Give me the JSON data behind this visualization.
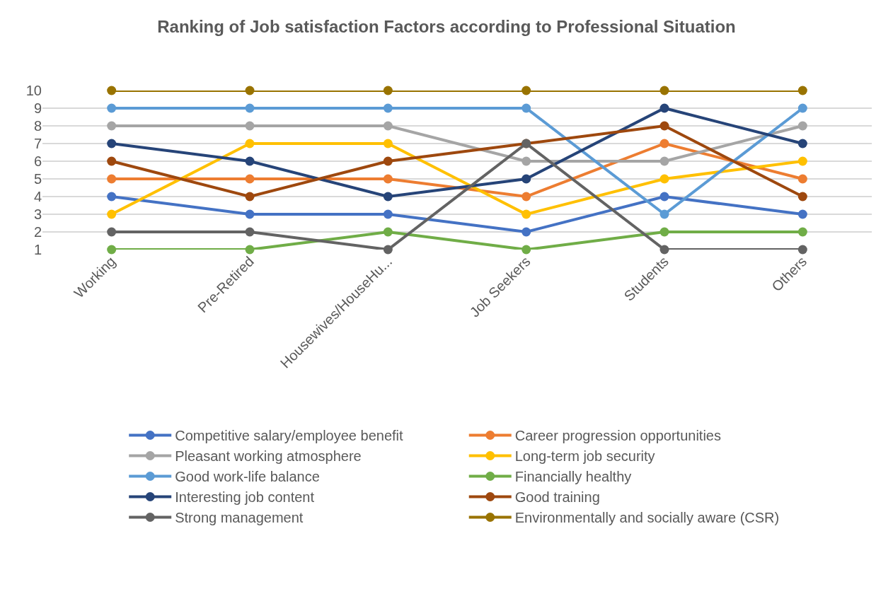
{
  "chart_data": {
    "type": "line",
    "title": "Ranking of Job satisfaction Factors according to Professional Situation",
    "categories": [
      "Working",
      "Pre-Retired",
      "Housewives/HouseHu...",
      "Job Seekers",
      "Students",
      "Others"
    ],
    "series": [
      {
        "name": "Competitive salary/employee benefit",
        "color": "#4472c4",
        "values": [
          4,
          3,
          3,
          2,
          4,
          3
        ]
      },
      {
        "name": "Career progression opportunities",
        "color": "#ed7d31",
        "values": [
          5,
          5,
          5,
          4,
          7,
          5
        ]
      },
      {
        "name": "Pleasant working atmosphere",
        "color": "#a5a5a5",
        "values": [
          8,
          8,
          8,
          6,
          6,
          8
        ]
      },
      {
        "name": "Long-term job security",
        "color": "#ffc000",
        "values": [
          3,
          7,
          7,
          3,
          5,
          6
        ]
      },
      {
        "name": "Good work-life balance",
        "color": "#5b9bd5",
        "values": [
          9,
          9,
          9,
          9,
          3,
          9
        ]
      },
      {
        "name": "Financially healthy",
        "color": "#70ad47",
        "values": [
          1,
          1,
          2,
          1,
          2,
          2
        ]
      },
      {
        "name": "Interesting job content",
        "color": "#264478",
        "values": [
          7,
          6,
          4,
          5,
          9,
          7
        ]
      },
      {
        "name": "Good training",
        "color": "#9e480e",
        "values": [
          6,
          4,
          6,
          7,
          8,
          4
        ]
      },
      {
        "name": "Strong management",
        "color": "#636363",
        "values": [
          2,
          2,
          1,
          7,
          1,
          1
        ]
      },
      {
        "name": "Environmentally and socially aware (CSR)",
        "color": "#997300",
        "values": [
          10,
          10,
          10,
          10,
          10,
          10
        ]
      }
    ],
    "ylim": [
      1,
      10
    ],
    "yticks": [
      1,
      2,
      3,
      4,
      5,
      6,
      7,
      8,
      9,
      10
    ],
    "grid": "y",
    "legend": "bottom",
    "marker": "circle",
    "line_style": "solid"
  }
}
